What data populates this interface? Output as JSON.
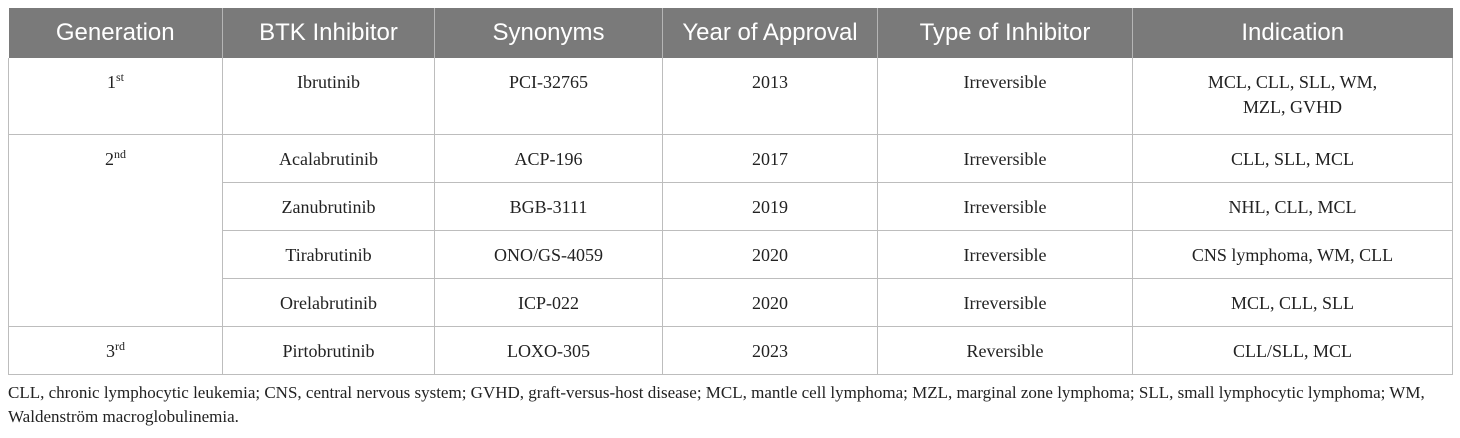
{
  "table": {
    "headers": [
      "Generation",
      "BTK Inhibitor",
      "Synonyms",
      "Year of Approval",
      "Type of Inhibitor",
      "Indication"
    ],
    "groups": [
      {
        "generation": "1",
        "generation_sup": "st",
        "rows": [
          {
            "inhibitor": "Ibrutinib",
            "synonyms": "PCI-32765",
            "year": "2013",
            "type": "Irreversible",
            "indication_line1": "MCL, CLL, SLL, WM,",
            "indication_line2": "MZL, GVHD"
          }
        ]
      },
      {
        "generation": "2",
        "generation_sup": "nd",
        "rows": [
          {
            "inhibitor": "Acalabrutinib",
            "synonyms": "ACP-196",
            "year": "2017",
            "type": "Irreversible",
            "indication": "CLL, SLL, MCL"
          },
          {
            "inhibitor": "Zanubrutinib",
            "synonyms": "BGB-3111",
            "year": "2019",
            "type": "Irreversible",
            "indication": "NHL, CLL, MCL"
          },
          {
            "inhibitor": "Tirabrutinib",
            "synonyms": "ONO/GS-4059",
            "year": "2020",
            "type": "Irreversible",
            "indication": "CNS lymphoma, WM, CLL"
          },
          {
            "inhibitor": "Orelabrutinib",
            "synonyms": "ICP-022",
            "year": "2020",
            "type": "Irreversible",
            "indication": "MCL, CLL, SLL"
          }
        ]
      },
      {
        "generation": "3",
        "generation_sup": "rd",
        "rows": [
          {
            "inhibitor": "Pirtobrutinib",
            "synonyms": "LOXO-305",
            "year": "2023",
            "type": "Reversible",
            "indication": "CLL/SLL, MCL"
          }
        ]
      }
    ]
  },
  "footnote": "CLL, chronic lymphocytic leukemia; CNS, central nervous system; GVHD, graft-versus-host disease; MCL, mantle cell lymphoma; MZL, marginal zone lymphoma; SLL, small lymphocytic lymphoma; WM, Waldenström macroglobulinemia."
}
